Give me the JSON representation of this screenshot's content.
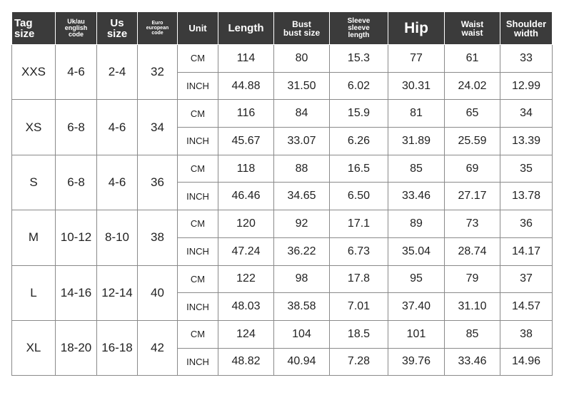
{
  "table": {
    "header": [
      "Tag\nsize",
      "Uk/au\nenglish\ncode",
      "Us\nsize",
      "Euro\neuropean\ncode",
      "Unit",
      "Length",
      "Bust\nbust size",
      "Sleeve\nsleeve\nlength",
      "Hip",
      "Waist\nwaist",
      "Shoulder\nwidth"
    ],
    "rows": [
      {
        "tag": "XXS",
        "uk": "4-6",
        "us": "2-4",
        "euro": "32",
        "measures": [
          [
            "CM",
            "114",
            "80",
            "15.3",
            "77",
            "61",
            "33"
          ],
          [
            "INCH",
            "44.88",
            "31.50",
            "6.02",
            "30.31",
            "24.02",
            "12.99"
          ]
        ]
      },
      {
        "tag": "XS",
        "uk": "6-8",
        "us": "4-6",
        "euro": "34",
        "measures": [
          [
            "CM",
            "116",
            "84",
            "15.9",
            "81",
            "65",
            "34"
          ],
          [
            "INCH",
            "45.67",
            "33.07",
            "6.26",
            "31.89",
            "25.59",
            "13.39"
          ]
        ]
      },
      {
        "tag": "S",
        "uk": "6-8",
        "us": "4-6",
        "euro": "36",
        "measures": [
          [
            "CM",
            "118",
            "88",
            "16.5",
            "85",
            "69",
            "35"
          ],
          [
            "INCH",
            "46.46",
            "34.65",
            "6.50",
            "33.46",
            "27.17",
            "13.78"
          ]
        ]
      },
      {
        "tag": "M",
        "uk": "10-12",
        "us": "8-10",
        "euro": "38",
        "measures": [
          [
            "CM",
            "120",
            "92",
            "17.1",
            "89",
            "73",
            "36"
          ],
          [
            "INCH",
            "47.24",
            "36.22",
            "6.73",
            "35.04",
            "28.74",
            "14.17"
          ]
        ]
      },
      {
        "tag": "L",
        "uk": "14-16",
        "us": "12-14",
        "euro": "40",
        "measures": [
          [
            "CM",
            "122",
            "98",
            "17.8",
            "95",
            "79",
            "37"
          ],
          [
            "INCH",
            "48.03",
            "38.58",
            "7.01",
            "37.40",
            "31.10",
            "14.57"
          ]
        ]
      },
      {
        "tag": "XL",
        "uk": "18-20",
        "us": "16-18",
        "euro": "42",
        "measures": [
          [
            "CM",
            "124",
            "104",
            "18.5",
            "101",
            "85",
            "38"
          ],
          [
            "INCH",
            "48.82",
            "40.94",
            "7.28",
            "39.76",
            "33.46",
            "14.96"
          ]
        ]
      }
    ]
  }
}
